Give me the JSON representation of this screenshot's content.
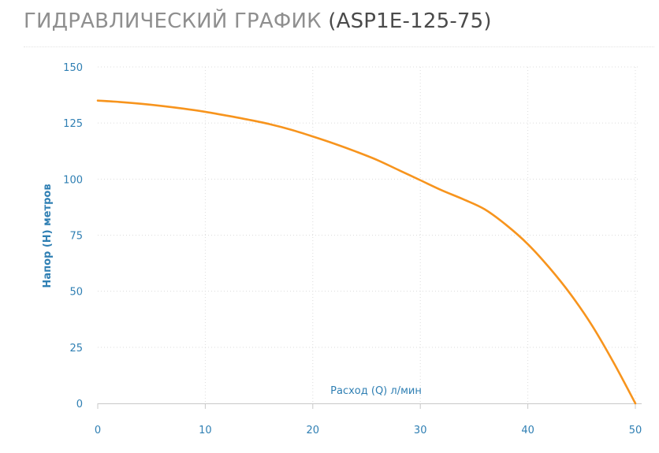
{
  "page": {
    "title_main": "ГИДРАВЛИЧЕСКИЙ ГРАФИК",
    "title_model": "(ASP1E-125-75)"
  },
  "colors": {
    "curve": "#f7941d",
    "axis_text": "#2f7fb3",
    "grid": "#dcdcdc",
    "title": "#8f8f8f"
  },
  "chart_data": {
    "type": "line",
    "title": "",
    "xlabel": "Расход (Q) л/мин",
    "ylabel": "Напор (H) метров",
    "xlim": [
      0,
      50
    ],
    "ylim": [
      0,
      150
    ],
    "x_ticks": [
      0,
      10,
      20,
      30,
      40,
      50
    ],
    "y_ticks": [
      0,
      25,
      50,
      75,
      100,
      125,
      150
    ],
    "grid": true,
    "legend": "none",
    "series": [
      {
        "x": [
          0,
          2,
          4,
          6,
          8,
          10,
          12,
          14,
          16,
          18,
          20,
          22,
          24,
          26,
          28,
          30,
          32,
          34,
          36,
          38,
          40,
          42,
          44,
          46,
          48,
          50
        ],
        "y": [
          135,
          134.4,
          133.6,
          132.6,
          131.4,
          130,
          128.3,
          126.5,
          124.5,
          122,
          119,
          115.8,
          112.3,
          108.5,
          104,
          99.5,
          95,
          91,
          86.5,
          79.5,
          71,
          60.5,
          48.5,
          34.5,
          18,
          0
        ]
      }
    ]
  }
}
